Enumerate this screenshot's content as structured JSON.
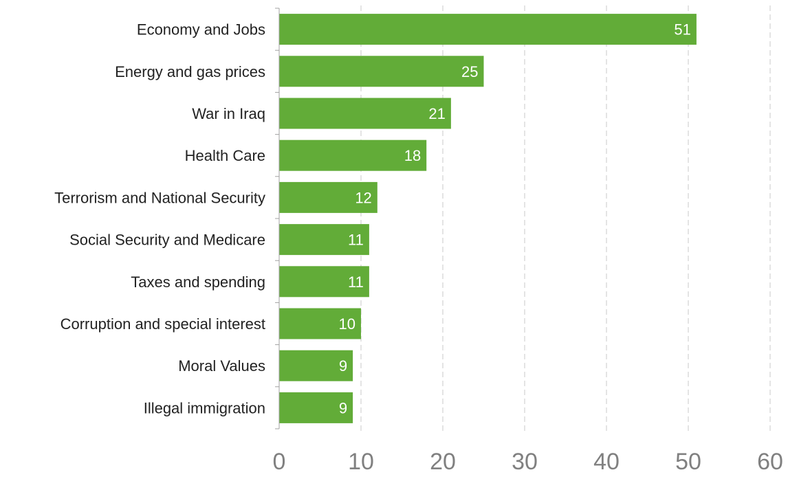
{
  "chart_data": {
    "type": "bar",
    "orientation": "horizontal",
    "categories": [
      "Economy and Jobs",
      "Energy and gas prices",
      "War in Iraq",
      "Health Care",
      "Terrorism and National Security",
      "Social Security and Medicare",
      "Taxes and spending",
      "Corruption and special interest",
      "Moral Values",
      "Illegal immigration"
    ],
    "values": [
      51,
      25,
      21,
      18,
      12,
      11,
      11,
      10,
      9,
      9
    ],
    "xlim": [
      0,
      60
    ],
    "xticks": [
      0,
      10,
      20,
      30,
      40,
      50,
      60
    ],
    "grid": "vertical dashed",
    "bar_color": "#62ac38",
    "data_label_color": "#ffffff",
    "tick_label_color": "#808080",
    "title": "",
    "xlabel": "",
    "ylabel": ""
  }
}
